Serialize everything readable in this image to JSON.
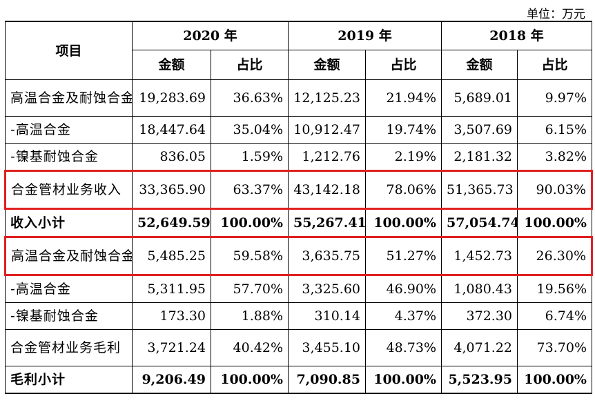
{
  "unit_label": "单位：万元",
  "header": {
    "item": "项目",
    "years": [
      "2020 年",
      "2019 年",
      "2018 年"
    ],
    "amount": "金额",
    "ratio": "占比"
  },
  "rows": [
    {
      "label": "高温合金及耐蚀合金业务收入",
      "v": [
        "19,283.69",
        "36.63%",
        "12,125.23",
        "21.94%",
        "5,689.01",
        "9.97%"
      ]
    },
    {
      "label": "-高温合金",
      "v": [
        "18,447.64",
        "35.04%",
        "10,912.47",
        "19.74%",
        "3,507.69",
        "6.15%"
      ]
    },
    {
      "label": "-镍基耐蚀合金",
      "v": [
        "836.05",
        "1.59%",
        "1,212.76",
        "2.19%",
        "2,181.32",
        "3.82%"
      ]
    },
    {
      "label": "合金管材业务收入",
      "v": [
        "33,365.90",
        "63.37%",
        "43,142.18",
        "78.06%",
        "51,365.73",
        "90.03%"
      ]
    },
    {
      "label": "收入小计",
      "v": [
        "52,649.59",
        "100.00%",
        "55,267.41",
        "100.00%",
        "57,054.74",
        "100.00%"
      ]
    },
    {
      "label": "高温合金及耐蚀合金业务毛利",
      "v": [
        "5,485.25",
        "59.58%",
        "3,635.75",
        "51.27%",
        "1,452.73",
        "26.30%"
      ]
    },
    {
      "label": "-高温合金",
      "v": [
        "5,311.95",
        "57.70%",
        "3,325.60",
        "46.90%",
        "1,080.43",
        "19.56%"
      ]
    },
    {
      "label": "-镍基耐蚀合金",
      "v": [
        "173.30",
        "1.88%",
        "310.14",
        "4.37%",
        "372.30",
        "6.74%"
      ]
    },
    {
      "label": "合金管材业务毛利",
      "v": [
        "3,721.24",
        "40.42%",
        "3,455.10",
        "48.73%",
        "4,071.22",
        "73.70%"
      ]
    },
    {
      "label": "毛利小计",
      "v": [
        "9,206.49",
        "100.00%",
        "7,090.85",
        "100.00%",
        "5,523.95",
        "100.00%"
      ]
    }
  ],
  "highlight_color": "#e02020"
}
